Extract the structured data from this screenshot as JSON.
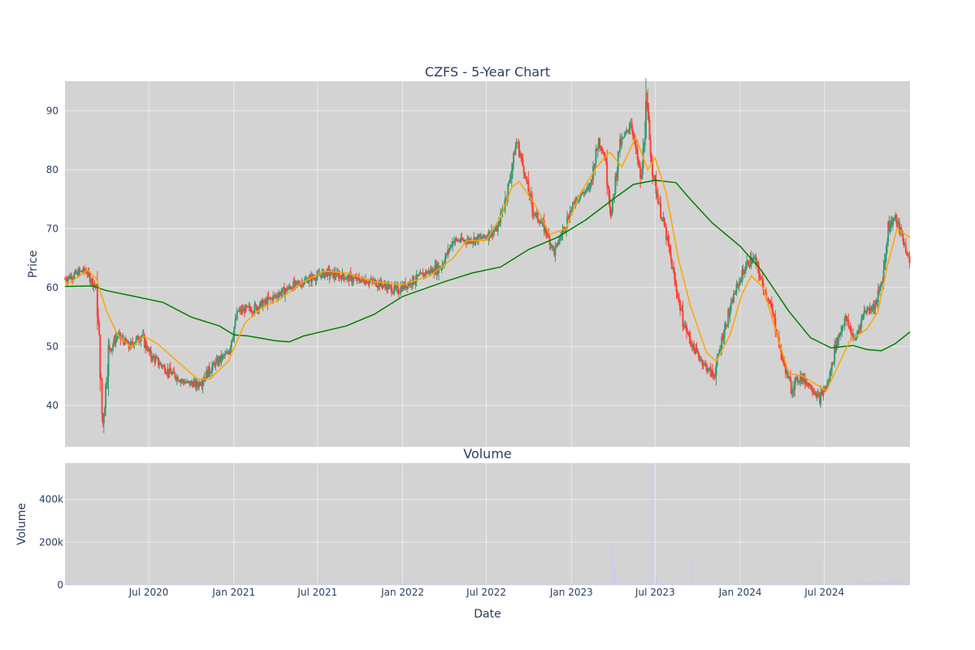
{
  "chart_data": {
    "title": "CZFS - 5-Year Chart",
    "subplot_title": "Volume",
    "xlabel": "Date",
    "colors": {
      "plot_bg": "#d3d3d3",
      "grid": "#ebebeb",
      "up": "#3d9970",
      "down": "#ff4136",
      "ma_short": "#ffa500",
      "ma_long": "#008000",
      "volume": "#c8c8f0",
      "text": "#2a3f5f"
    },
    "x_ticks": [
      "Jul 2020",
      "Jan 2021",
      "Jul 2021",
      "Jan 2022",
      "Jul 2022",
      "Jan 2023",
      "Jul 2023",
      "Jan 2024",
      "Jul 2024"
    ],
    "x_range": [
      "2020-01-02",
      "2025-01-02"
    ],
    "price_panel": {
      "type": "candlestick",
      "ylabel": "Price",
      "ylim": [
        33,
        95
      ],
      "y_ticks": [
        40,
        50,
        60,
        70,
        80,
        90
      ],
      "price_path": [
        [
          "2020-01-02",
          61.5
        ],
        [
          "2020-02-15",
          63
        ],
        [
          "2020-03-10",
          60
        ],
        [
          "2020-03-20",
          44
        ],
        [
          "2020-03-23",
          36
        ],
        [
          "2020-04-05",
          49
        ],
        [
          "2020-04-25",
          52
        ],
        [
          "2020-05-20",
          50
        ],
        [
          "2020-06-15",
          52
        ],
        [
          "2020-07-05",
          48.5
        ],
        [
          "2020-08-10",
          46
        ],
        [
          "2020-09-15",
          44
        ],
        [
          "2020-10-15",
          43.5
        ],
        [
          "2020-11-20",
          47
        ],
        [
          "2020-12-20",
          49
        ],
        [
          "2021-01-10",
          56
        ],
        [
          "2021-02-15",
          56.5
        ],
        [
          "2021-03-20",
          58
        ],
        [
          "2021-05-01",
          60
        ],
        [
          "2021-06-15",
          61.5
        ],
        [
          "2021-07-20",
          62.5
        ],
        [
          "2021-09-15",
          61.5
        ],
        [
          "2021-11-01",
          61
        ],
        [
          "2021-12-20",
          59.5
        ],
        [
          "2022-01-20",
          61
        ],
        [
          "2022-02-20",
          62.5
        ],
        [
          "2022-03-25",
          63.5
        ],
        [
          "2022-04-20",
          68
        ],
        [
          "2022-05-20",
          68
        ],
        [
          "2022-06-25",
          68.5
        ],
        [
          "2022-07-25",
          70
        ],
        [
          "2022-08-15",
          76
        ],
        [
          "2022-09-05",
          85
        ],
        [
          "2022-09-20",
          80
        ],
        [
          "2022-10-10",
          73
        ],
        [
          "2022-11-05",
          70
        ],
        [
          "2022-11-25",
          66
        ],
        [
          "2022-12-20",
          71
        ],
        [
          "2023-01-10",
          75
        ],
        [
          "2023-02-10",
          77
        ],
        [
          "2023-03-01",
          85
        ],
        [
          "2023-03-15",
          82
        ],
        [
          "2023-03-28",
          72
        ],
        [
          "2023-04-15",
          84
        ],
        [
          "2023-05-10",
          88
        ],
        [
          "2023-06-01",
          78
        ],
        [
          "2023-06-12",
          91
        ],
        [
          "2023-06-25",
          80
        ],
        [
          "2023-07-10",
          74
        ],
        [
          "2023-07-25",
          69
        ],
        [
          "2023-08-15",
          60
        ],
        [
          "2023-09-01",
          54
        ],
        [
          "2023-09-20",
          50
        ],
        [
          "2023-10-15",
          47
        ],
        [
          "2023-11-05",
          45
        ],
        [
          "2023-11-25",
          52
        ],
        [
          "2023-12-20",
          59
        ],
        [
          "2024-01-15",
          64
        ],
        [
          "2024-02-01",
          65
        ],
        [
          "2024-02-20",
          60
        ],
        [
          "2024-03-10",
          56
        ],
        [
          "2024-04-01",
          48
        ],
        [
          "2024-04-20",
          43
        ],
        [
          "2024-05-10",
          45
        ],
        [
          "2024-06-05",
          43
        ],
        [
          "2024-06-20",
          41
        ],
        [
          "2024-07-10",
          44
        ],
        [
          "2024-07-25",
          50
        ],
        [
          "2024-08-15",
          55
        ],
        [
          "2024-09-05",
          51
        ],
        [
          "2024-09-25",
          56
        ],
        [
          "2024-10-20",
          57
        ],
        [
          "2024-11-05",
          62
        ],
        [
          "2024-11-15",
          70
        ],
        [
          "2024-12-01",
          72
        ],
        [
          "2024-12-15",
          69
        ],
        [
          "2025-01-02",
          64
        ]
      ],
      "ma_short_path": [
        [
          "2020-01-02",
          60.3
        ],
        [
          "2020-02-20",
          63
        ],
        [
          "2020-03-10",
          61.5
        ],
        [
          "2020-04-01",
          56
        ],
        [
          "2020-04-25",
          52
        ],
        [
          "2020-05-25",
          49.8
        ],
        [
          "2020-06-20",
          51.8
        ],
        [
          "2020-07-20",
          50.5
        ],
        [
          "2020-09-01",
          47.5
        ],
        [
          "2020-10-15",
          44.5
        ],
        [
          "2020-11-10",
          44.5
        ],
        [
          "2020-12-20",
          47.5
        ],
        [
          "2021-01-25",
          54
        ],
        [
          "2021-03-01",
          56.5
        ],
        [
          "2021-04-10",
          58
        ],
        [
          "2021-06-01",
          61
        ],
        [
          "2021-07-15",
          62.8
        ],
        [
          "2021-09-01",
          62.5
        ],
        [
          "2021-11-01",
          61
        ],
        [
          "2022-01-01",
          60.5
        ],
        [
          "2022-03-01",
          62
        ],
        [
          "2022-04-20",
          65
        ],
        [
          "2022-05-20",
          68
        ],
        [
          "2022-07-01",
          68
        ],
        [
          "2022-08-01",
          72
        ],
        [
          "2022-08-25",
          77
        ],
        [
          "2022-09-10",
          78
        ],
        [
          "2022-10-15",
          74
        ],
        [
          "2022-11-15",
          69
        ],
        [
          "2022-12-20",
          70
        ],
        [
          "2023-01-20",
          76
        ],
        [
          "2023-02-25",
          80.5
        ],
        [
          "2023-03-25",
          83
        ],
        [
          "2023-04-20",
          80.5
        ],
        [
          "2023-05-20",
          85.5
        ],
        [
          "2023-06-15",
          80
        ],
        [
          "2023-07-01",
          82
        ],
        [
          "2023-07-25",
          76
        ],
        [
          "2023-08-20",
          65
        ],
        [
          "2023-09-15",
          57
        ],
        [
          "2023-10-20",
          49
        ],
        [
          "2023-11-10",
          47.5
        ],
        [
          "2023-12-10",
          52
        ],
        [
          "2024-01-05",
          59
        ],
        [
          "2024-01-25",
          62
        ],
        [
          "2024-02-20",
          60
        ],
        [
          "2024-03-20",
          52
        ],
        [
          "2024-04-15",
          45.5
        ],
        [
          "2024-05-15",
          45
        ],
        [
          "2024-06-15",
          43.5
        ],
        [
          "2024-07-05",
          42.5
        ],
        [
          "2024-08-01",
          47
        ],
        [
          "2024-08-25",
          51
        ],
        [
          "2024-10-01",
          53
        ],
        [
          "2024-10-25",
          56
        ],
        [
          "2024-11-15",
          64
        ],
        [
          "2024-12-05",
          70
        ],
        [
          "2025-01-02",
          68.5
        ]
      ],
      "ma_long_path": [
        [
          "2020-01-02",
          60.2
        ],
        [
          "2020-03-01",
          60.3
        ],
        [
          "2020-04-01",
          59.5
        ],
        [
          "2020-06-01",
          58.5
        ],
        [
          "2020-08-01",
          57.5
        ],
        [
          "2020-10-01",
          55
        ],
        [
          "2020-12-01",
          53.5
        ],
        [
          "2021-01-01",
          52
        ],
        [
          "2021-02-01",
          51.8
        ],
        [
          "2021-04-01",
          51
        ],
        [
          "2021-05-01",
          50.8
        ],
        [
          "2021-06-01",
          51.8
        ],
        [
          "2021-09-01",
          53.5
        ],
        [
          "2021-11-01",
          55.5
        ],
        [
          "2022-01-01",
          58.5
        ],
        [
          "2022-04-01",
          61
        ],
        [
          "2022-06-01",
          62.5
        ],
        [
          "2022-08-01",
          63.5
        ],
        [
          "2022-10-01",
          66.5
        ],
        [
          "2022-12-01",
          68.5
        ],
        [
          "2023-02-01",
          71.5
        ],
        [
          "2023-04-01",
          75
        ],
        [
          "2023-05-15",
          77.5
        ],
        [
          "2023-07-01",
          78.2
        ],
        [
          "2023-08-15",
          77.8
        ],
        [
          "2023-09-15",
          75
        ],
        [
          "2023-11-01",
          71
        ],
        [
          "2024-01-01",
          67
        ],
        [
          "2024-02-15",
          63
        ],
        [
          "2024-04-15",
          56
        ],
        [
          "2024-06-01",
          51.5
        ],
        [
          "2024-07-15",
          49.8
        ],
        [
          "2024-09-01",
          50.2
        ],
        [
          "2024-10-01",
          49.5
        ],
        [
          "2024-11-01",
          49.3
        ],
        [
          "2024-12-01",
          50.5
        ],
        [
          "2025-01-02",
          52.5
        ]
      ]
    },
    "volume_panel": {
      "type": "bar",
      "ylabel": "Volume",
      "ylim": [
        0,
        570000
      ],
      "y_ticks": [
        0,
        200000,
        400000
      ],
      "y_tick_labels": [
        "0",
        "200k",
        "400k"
      ],
      "baseline_volume": 3000,
      "spikes": [
        [
          "2021-02-10",
          18000
        ],
        [
          "2022-06-01",
          7000
        ],
        [
          "2023-03-30",
          200000
        ],
        [
          "2023-04-05",
          90000
        ],
        [
          "2023-06-25",
          550000
        ],
        [
          "2023-07-03",
          40000
        ],
        [
          "2023-09-20",
          110000
        ],
        [
          "2023-12-05",
          25000
        ],
        [
          "2024-06-20",
          120000
        ],
        [
          "2024-09-10",
          30000
        ],
        [
          "2024-11-20",
          40000
        ],
        [
          "2024-12-15",
          35000
        ]
      ]
    }
  }
}
